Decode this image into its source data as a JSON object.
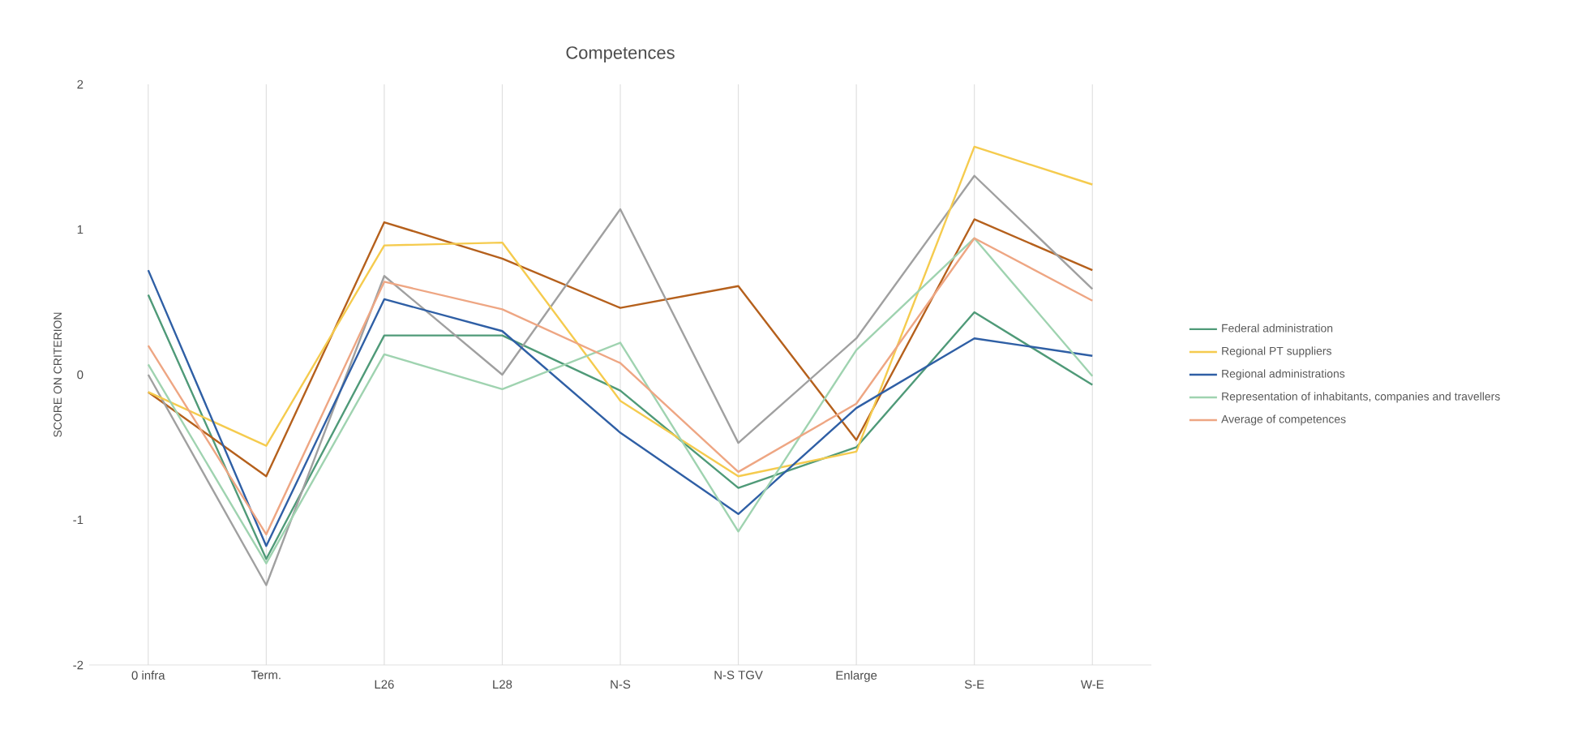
{
  "chart_data": {
    "type": "line",
    "title": "Competences",
    "ylabel": "SCORE ON CRITERION",
    "categories": [
      "0 infra",
      "Term.",
      "L26",
      "L28",
      "N-S",
      "N-S TGV",
      "Enlarge",
      "S-E",
      "W-E"
    ],
    "series": [
      {
        "name": "Federal administration",
        "color": "#4f9a78",
        "values": [
          0.55,
          -1.27,
          0.27,
          0.27,
          -0.11,
          -0.78,
          -0.5,
          0.43,
          -0.07
        ]
      },
      {
        "color": "#b5601c",
        "values": [
          -0.12,
          -0.7,
          1.05,
          0.8,
          0.46,
          0.61,
          -0.45,
          1.07,
          0.72
        ]
      },
      {
        "color": "#a0a0a0",
        "values": [
          0.0,
          -1.45,
          0.68,
          0.0,
          1.14,
          -0.47,
          0.25,
          1.37,
          0.59
        ]
      },
      {
        "name": "Regional PT suppliers",
        "color": "#f5cb4e",
        "values": [
          -0.12,
          -0.49,
          0.89,
          0.91,
          -0.18,
          -0.7,
          -0.53,
          1.57,
          1.31
        ]
      },
      {
        "name": "Regional administrations",
        "color": "#2f5fa5",
        "values": [
          0.72,
          -1.18,
          0.52,
          0.3,
          -0.4,
          -0.96,
          -0.23,
          0.25,
          0.13
        ]
      },
      {
        "name": "Representation of inhabitants, companies and travellers",
        "color": "#9fd3b0",
        "values": [
          0.07,
          -1.3,
          0.14,
          -0.1,
          0.22,
          -1.08,
          0.17,
          0.94,
          -0.01
        ]
      },
      {
        "name": "Average of competences",
        "color": "#eea683",
        "values": [
          0.2,
          -1.1,
          0.64,
          0.45,
          0.08,
          -0.67,
          -0.2,
          0.94,
          0.51
        ]
      }
    ],
    "ylim": [
      -2,
      2
    ],
    "yticks": [
      -2,
      -1,
      0,
      1,
      2
    ],
    "grid": "x",
    "legend": "right",
    "marker": "none",
    "line_style": "solid"
  }
}
